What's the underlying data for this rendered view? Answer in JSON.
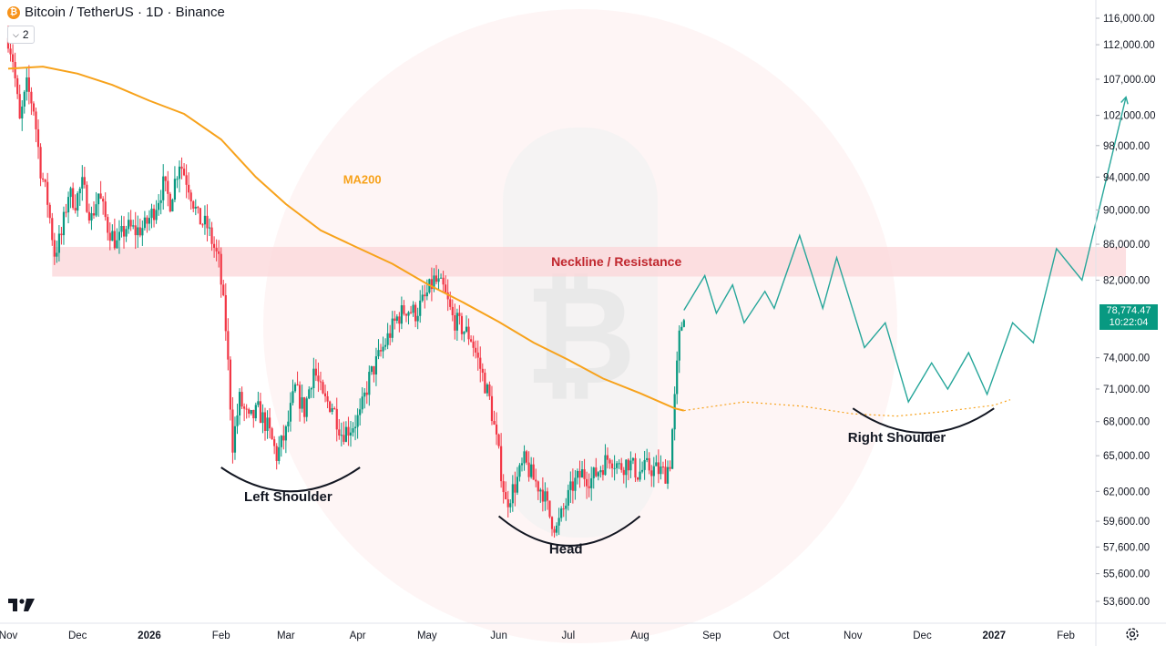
{
  "header": {
    "coin_icon": "bitcoin-icon",
    "title": "Bitcoin / TetherUS · 1D · Binance",
    "indicator_count": "2"
  },
  "colors": {
    "up": "#089981",
    "down": "#f23645",
    "ma": "#f7a21b",
    "projection": "#26a69a",
    "zone": "#fbd5d8",
    "zone_text": "#c0262d"
  },
  "last_price": {
    "value": "78,774.47",
    "countdown": "10:22:04"
  },
  "chart_data": {
    "type": "candlestick",
    "y_axis": {
      "scale": "log",
      "ticks": [
        "116,000.00",
        "112,000.00",
        "107,000.00",
        "102,000.00",
        "98,000.00",
        "94,000.00",
        "90,000.00",
        "86,000.00",
        "82,000.00",
        "74,000.00",
        "71,000.00",
        "68,000.00",
        "65,000.00",
        "62,000.00",
        "59,600.00",
        "57,600.00",
        "55,600.00",
        "53,600.00"
      ],
      "tick_values": [
        116000,
        112000,
        107000,
        102000,
        98000,
        94000,
        90000,
        86000,
        82000,
        74000,
        71000,
        68000,
        65000,
        62000,
        59600,
        57600,
        55600,
        53600
      ]
    },
    "x_axis": {
      "ticks": [
        {
          "label": "Nov",
          "date": "2025-11-01",
          "bold": false
        },
        {
          "label": "Dec",
          "date": "2025-12-01",
          "bold": false
        },
        {
          "label": "2026",
          "date": "2026-01-01",
          "bold": true
        },
        {
          "label": "Feb",
          "date": "2026-02-01",
          "bold": false
        },
        {
          "label": "Mar",
          "date": "2026-03-01",
          "bold": false
        },
        {
          "label": "Apr",
          "date": "2026-04-01",
          "bold": false
        },
        {
          "label": "May",
          "date": "2026-05-01",
          "bold": false
        },
        {
          "label": "Jun",
          "date": "2026-06-01",
          "bold": false
        },
        {
          "label": "Jul",
          "date": "2026-07-01",
          "bold": false
        },
        {
          "label": "Aug",
          "date": "2026-08-01",
          "bold": false
        },
        {
          "label": "Sep",
          "date": "2026-09-01",
          "bold": false
        },
        {
          "label": "Oct",
          "date": "2026-10-01",
          "bold": false
        },
        {
          "label": "Nov",
          "date": "2026-11-01",
          "bold": false
        },
        {
          "label": "Dec",
          "date": "2026-12-01",
          "bold": false
        },
        {
          "label": "2027",
          "date": "2027-01-01",
          "bold": true
        },
        {
          "label": "Feb",
          "date": "2027-02-01",
          "bold": false
        }
      ]
    },
    "price_path": [
      [
        "2025-11-01",
        113000
      ],
      [
        "2025-11-03",
        110000
      ],
      [
        "2025-11-06",
        101000
      ],
      [
        "2025-11-09",
        106000
      ],
      [
        "2025-11-12",
        103000
      ],
      [
        "2025-11-15",
        95000
      ],
      [
        "2025-11-18",
        91000
      ],
      [
        "2025-11-21",
        85000
      ],
      [
        "2025-11-24",
        87000
      ],
      [
        "2025-11-27",
        92000
      ],
      [
        "2025-11-30",
        91000
      ],
      [
        "2025-12-03",
        93000
      ],
      [
        "2025-12-07",
        89000
      ],
      [
        "2025-12-10",
        92000
      ],
      [
        "2025-12-14",
        88000
      ],
      [
        "2025-12-18",
        86000
      ],
      [
        "2025-12-22",
        88000
      ],
      [
        "2025-12-26",
        87500
      ],
      [
        "2025-12-30",
        88000
      ],
      [
        "2026-01-03",
        90000
      ],
      [
        "2026-01-07",
        93000
      ],
      [
        "2026-01-10",
        91000
      ],
      [
        "2026-01-14",
        96000
      ],
      [
        "2026-01-18",
        93000
      ],
      [
        "2026-01-22",
        89000
      ],
      [
        "2026-01-26",
        88000
      ],
      [
        "2026-01-31",
        84000
      ],
      [
        "2026-02-03",
        77000
      ],
      [
        "2026-02-06",
        66000
      ],
      [
        "2026-02-09",
        70000
      ],
      [
        "2026-02-13",
        68000
      ],
      [
        "2026-02-17",
        69000
      ],
      [
        "2026-02-21",
        67500
      ],
      [
        "2026-02-25",
        65000
      ],
      [
        "2026-03-01",
        67000
      ],
      [
        "2026-03-05",
        71000
      ],
      [
        "2026-03-09",
        69000
      ],
      [
        "2026-03-13",
        73000
      ],
      [
        "2026-03-17",
        70000
      ],
      [
        "2026-03-21",
        69500
      ],
      [
        "2026-03-25",
        67000
      ],
      [
        "2026-03-29",
        67500
      ],
      [
        "2026-04-02",
        68500
      ],
      [
        "2026-04-06",
        72000
      ],
      [
        "2026-04-10",
        74000
      ],
      [
        "2026-04-14",
        76000
      ],
      [
        "2026-04-18",
        78000
      ],
      [
        "2026-04-22",
        79000
      ],
      [
        "2026-04-26",
        78500
      ],
      [
        "2026-04-30",
        80000
      ],
      [
        "2026-05-04",
        82000
      ],
      [
        "2026-05-08",
        81000
      ],
      [
        "2026-05-12",
        78000
      ],
      [
        "2026-05-16",
        77000
      ],
      [
        "2026-05-20",
        76000
      ],
      [
        "2026-05-24",
        73000
      ],
      [
        "2026-05-28",
        70000
      ],
      [
        "2026-06-01",
        65000
      ],
      [
        "2026-06-04",
        61000
      ],
      [
        "2026-06-08",
        62500
      ],
      [
        "2026-06-12",
        64500
      ],
      [
        "2026-06-16",
        63000
      ],
      [
        "2026-06-20",
        62000
      ],
      [
        "2026-06-23",
        60000
      ],
      [
        "2026-06-26",
        59000
      ],
      [
        "2026-06-29",
        60500
      ],
      [
        "2026-07-03",
        62500
      ],
      [
        "2026-07-07",
        63500
      ],
      [
        "2026-07-11",
        63000
      ],
      [
        "2026-07-15",
        64000
      ],
      [
        "2026-07-19",
        65000
      ],
      [
        "2026-07-23",
        64000
      ],
      [
        "2026-07-27",
        64500
      ],
      [
        "2026-07-31",
        63500
      ],
      [
        "2026-08-04",
        64000
      ],
      [
        "2026-08-08",
        63800
      ],
      [
        "2026-08-12",
        63500
      ],
      [
        "2026-08-14",
        64500
      ],
      [
        "2026-08-16",
        70000
      ],
      [
        "2026-08-18",
        76000
      ],
      [
        "2026-08-20",
        78700
      ]
    ],
    "ma200": {
      "label": "MA200",
      "points": [
        [
          "2025-11-01",
          108500
        ],
        [
          "2025-11-16",
          108800
        ],
        [
          "2025-12-01",
          107800
        ],
        [
          "2025-12-16",
          106200
        ],
        [
          "2026-01-01",
          104000
        ],
        [
          "2026-01-16",
          102200
        ],
        [
          "2026-02-01",
          98800
        ],
        [
          "2026-02-16",
          94000
        ],
        [
          "2026-03-01",
          90700
        ],
        [
          "2026-03-16",
          87600
        ],
        [
          "2026-04-01",
          85600
        ],
        [
          "2026-04-16",
          83800
        ],
        [
          "2026-05-01",
          81600
        ],
        [
          "2026-05-16",
          79700
        ],
        [
          "2026-06-01",
          77600
        ],
        [
          "2026-06-16",
          75500
        ],
        [
          "2026-07-01",
          73800
        ],
        [
          "2026-07-16",
          72000
        ],
        [
          "2026-08-01",
          70600
        ],
        [
          "2026-08-16",
          69200
        ],
        [
          "2026-08-20",
          69000
        ]
      ],
      "projection": [
        [
          "2026-08-20",
          69000
        ],
        [
          "2026-09-15",
          69800
        ],
        [
          "2026-10-10",
          69400
        ],
        [
          "2026-11-01",
          68700
        ],
        [
          "2026-11-20",
          68500
        ],
        [
          "2026-12-10",
          68900
        ],
        [
          "2027-01-01",
          69500
        ],
        [
          "2027-01-08",
          70000
        ]
      ]
    },
    "projection_path": [
      [
        "2026-08-20",
        78800
      ],
      [
        "2026-08-29",
        82500
      ],
      [
        "2026-09-03",
        78500
      ],
      [
        "2026-09-10",
        81500
      ],
      [
        "2026-09-15",
        77500
      ],
      [
        "2026-09-24",
        80800
      ],
      [
        "2026-09-28",
        79000
      ],
      [
        "2026-10-09",
        87000
      ],
      [
        "2026-10-19",
        79000
      ],
      [
        "2026-10-25",
        84500
      ],
      [
        "2026-11-06",
        75000
      ],
      [
        "2026-11-15",
        77500
      ],
      [
        "2026-11-25",
        69800
      ],
      [
        "2026-12-05",
        73500
      ],
      [
        "2026-12-12",
        71000
      ],
      [
        "2026-12-21",
        74500
      ],
      [
        "2026-12-29",
        70500
      ],
      [
        "2027-01-09",
        77500
      ],
      [
        "2027-01-18",
        75500
      ],
      [
        "2027-01-28",
        85500
      ],
      [
        "2027-02-08",
        82000
      ],
      [
        "2027-02-27",
        104500
      ]
    ],
    "neckline_zone": {
      "label": "Neckline / Resistance",
      "low": 82400,
      "high": 85700,
      "start": "2025-11-20",
      "end": "2027-02-27"
    },
    "annotations": [
      {
        "text": "Left Shoulder",
        "date": "2026-03-02",
        "price": 61200
      },
      {
        "text": "Head",
        "date": "2026-06-30",
        "price": 57100
      },
      {
        "text": "Right Shoulder",
        "date": "2026-11-20",
        "price": 66200
      },
      {
        "text": "MA200",
        "date": "2026-04-03",
        "price": 93200
      }
    ],
    "arcs": [
      {
        "name": "left-shoulder-arc",
        "from": [
          "2026-02-01",
          64000
        ],
        "to": [
          "2026-04-02",
          64000
        ],
        "bottom": 62000
      },
      {
        "name": "head-arc",
        "from": [
          "2026-06-01",
          60000
        ],
        "to": [
          "2026-08-01",
          60000
        ],
        "bottom": 57700
      },
      {
        "name": "right-shoulder-arc",
        "from": [
          "2026-11-01",
          69200
        ],
        "to": [
          "2027-01-01",
          69200
        ],
        "bottom": 67000
      }
    ],
    "grid": false,
    "watermark": "bitcoin-icon",
    "logo": "tradingview-icon"
  }
}
